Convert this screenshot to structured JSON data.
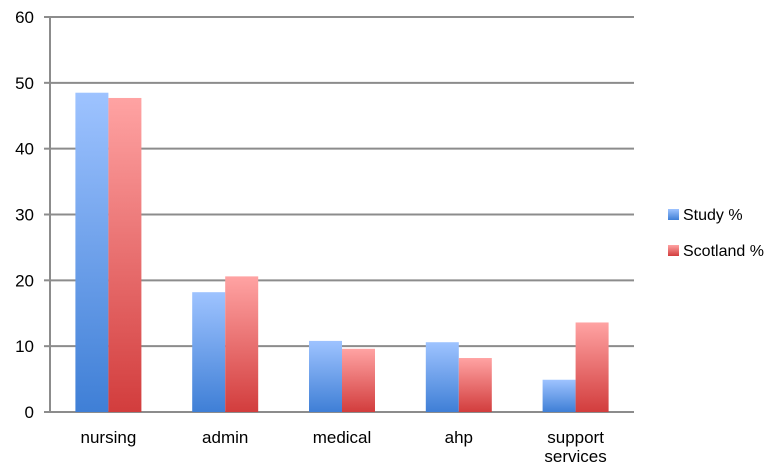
{
  "chart_data": {
    "type": "bar",
    "categories": [
      [
        "nursing"
      ],
      [
        "admin"
      ],
      [
        "medical"
      ],
      [
        "ahp"
      ],
      [
        "support",
        "services"
      ]
    ],
    "series": [
      {
        "name": "Study %",
        "values": [
          48.5,
          18.2,
          10.8,
          10.6,
          4.9
        ],
        "color_light": "#9ec3ff",
        "color_dark": "#3f7fd6"
      },
      {
        "name": "Scotland %",
        "values": [
          47.7,
          20.6,
          9.6,
          8.2,
          13.6
        ],
        "color_light": "#ffa3a3",
        "color_dark": "#d23d3d"
      }
    ],
    "ylim": [
      0,
      60
    ],
    "yticks": [
      0,
      10,
      20,
      30,
      40,
      50,
      60
    ],
    "grid": true,
    "legend_position": "right"
  }
}
